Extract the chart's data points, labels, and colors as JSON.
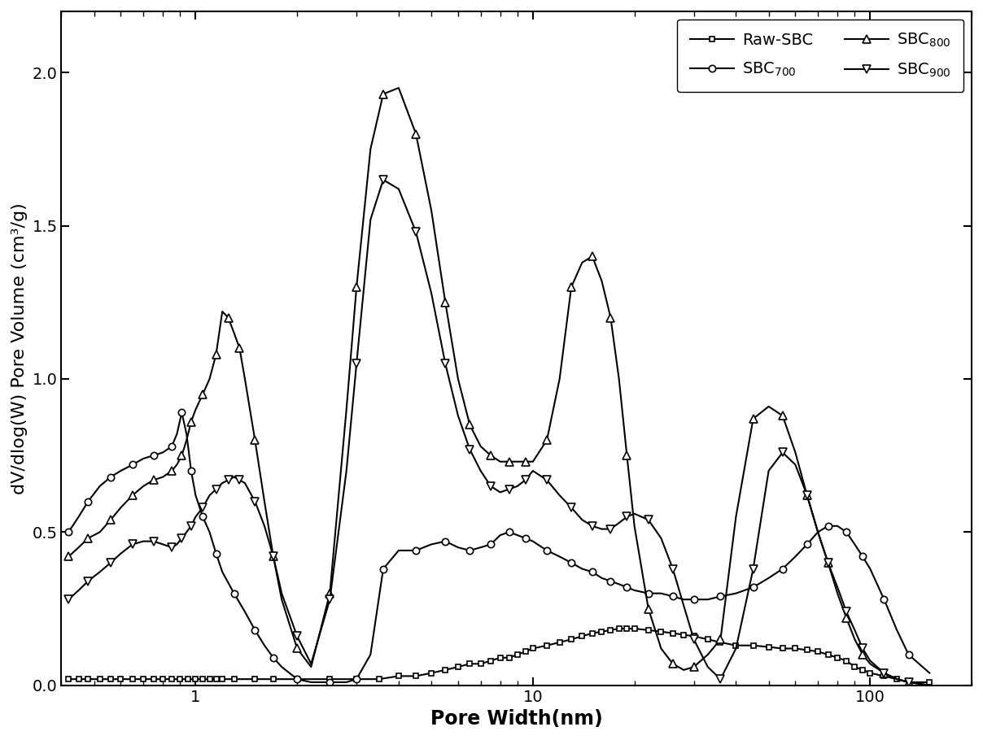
{
  "xlabel": "Pore Width(nm)",
  "ylabel": "dV/dlog(W) Pore Volume (cm³/g)",
  "xlim": [
    0.4,
    200
  ],
  "ylim": [
    0.0,
    2.2
  ],
  "yticks": [
    0.0,
    0.5,
    1.0,
    1.5,
    2.0
  ],
  "series": {
    "Raw-SBC": {
      "x": [
        0.42,
        0.45,
        0.48,
        0.52,
        0.56,
        0.6,
        0.65,
        0.7,
        0.75,
        0.8,
        0.85,
        0.9,
        0.95,
        1.0,
        1.05,
        1.1,
        1.15,
        1.2,
        1.3,
        1.5,
        1.7,
        2.0,
        2.5,
        3.0,
        3.5,
        4.0,
        4.5,
        5.0,
        5.5,
        6.0,
        6.5,
        7.0,
        7.5,
        8.0,
        8.5,
        9.0,
        9.5,
        10.0,
        11.0,
        12.0,
        13.0,
        14.0,
        15.0,
        16.0,
        17.0,
        18.0,
        19.0,
        20.0,
        22.0,
        24.0,
        26.0,
        28.0,
        30.0,
        33.0,
        36.0,
        40.0,
        45.0,
        50.0,
        55.0,
        60.0,
        65.0,
        70.0,
        75.0,
        80.0,
        85.0,
        90.0,
        95.0,
        100.0,
        110.0,
        120.0,
        130.0,
        150.0
      ],
      "y": [
        0.02,
        0.02,
        0.02,
        0.02,
        0.02,
        0.02,
        0.02,
        0.02,
        0.02,
        0.02,
        0.02,
        0.02,
        0.02,
        0.02,
        0.02,
        0.02,
        0.02,
        0.02,
        0.02,
        0.02,
        0.02,
        0.02,
        0.02,
        0.02,
        0.02,
        0.03,
        0.03,
        0.04,
        0.05,
        0.06,
        0.07,
        0.07,
        0.08,
        0.09,
        0.09,
        0.1,
        0.11,
        0.12,
        0.13,
        0.14,
        0.15,
        0.16,
        0.17,
        0.175,
        0.18,
        0.185,
        0.185,
        0.185,
        0.18,
        0.175,
        0.17,
        0.165,
        0.16,
        0.15,
        0.14,
        0.13,
        0.13,
        0.125,
        0.12,
        0.12,
        0.115,
        0.11,
        0.1,
        0.09,
        0.08,
        0.06,
        0.05,
        0.04,
        0.03,
        0.02,
        0.01,
        0.01
      ],
      "marker": "s",
      "label": "Raw-SBC",
      "markersize": 5,
      "markevery": 1
    },
    "SBC700": {
      "x": [
        0.42,
        0.45,
        0.48,
        0.52,
        0.56,
        0.6,
        0.65,
        0.7,
        0.75,
        0.8,
        0.85,
        0.88,
        0.91,
        0.94,
        0.97,
        1.0,
        1.05,
        1.1,
        1.15,
        1.2,
        1.3,
        1.4,
        1.5,
        1.6,
        1.7,
        1.8,
        2.0,
        2.2,
        2.5,
        2.8,
        3.0,
        3.3,
        3.6,
        4.0,
        4.5,
        5.0,
        5.5,
        6.0,
        6.5,
        7.0,
        7.5,
        8.0,
        8.5,
        9.0,
        9.5,
        10.0,
        11.0,
        12.0,
        13.0,
        14.0,
        15.0,
        16.0,
        17.0,
        18.0,
        19.0,
        20.0,
        22.0,
        24.0,
        26.0,
        28.0,
        30.0,
        33.0,
        36.0,
        40.0,
        45.0,
        50.0,
        55.0,
        60.0,
        65.0,
        70.0,
        75.0,
        80.0,
        85.0,
        90.0,
        95.0,
        100.0,
        110.0,
        120.0,
        130.0,
        150.0
      ],
      "y": [
        0.5,
        0.55,
        0.6,
        0.65,
        0.68,
        0.7,
        0.72,
        0.74,
        0.75,
        0.76,
        0.78,
        0.82,
        0.89,
        0.82,
        0.7,
        0.62,
        0.55,
        0.5,
        0.43,
        0.37,
        0.3,
        0.24,
        0.18,
        0.13,
        0.09,
        0.06,
        0.02,
        0.01,
        0.01,
        0.01,
        0.02,
        0.1,
        0.38,
        0.44,
        0.44,
        0.46,
        0.47,
        0.45,
        0.44,
        0.45,
        0.46,
        0.49,
        0.5,
        0.49,
        0.48,
        0.47,
        0.44,
        0.42,
        0.4,
        0.38,
        0.37,
        0.35,
        0.34,
        0.33,
        0.32,
        0.31,
        0.3,
        0.3,
        0.29,
        0.28,
        0.28,
        0.28,
        0.29,
        0.3,
        0.32,
        0.35,
        0.38,
        0.42,
        0.46,
        0.5,
        0.52,
        0.52,
        0.5,
        0.46,
        0.42,
        0.38,
        0.28,
        0.18,
        0.1,
        0.04
      ],
      "marker": "o",
      "label": "SBC$_{700}$",
      "markersize": 6,
      "markevery": 2
    },
    "SBC800": {
      "x": [
        0.42,
        0.45,
        0.48,
        0.52,
        0.56,
        0.6,
        0.65,
        0.7,
        0.75,
        0.8,
        0.85,
        0.88,
        0.91,
        0.94,
        0.97,
        1.0,
        1.05,
        1.1,
        1.15,
        1.2,
        1.25,
        1.3,
        1.35,
        1.4,
        1.5,
        1.6,
        1.7,
        1.8,
        2.0,
        2.2,
        2.5,
        2.8,
        3.0,
        3.3,
        3.6,
        4.0,
        4.5,
        5.0,
        5.5,
        6.0,
        6.5,
        7.0,
        7.5,
        8.0,
        8.5,
        9.0,
        9.5,
        10.0,
        11.0,
        12.0,
        13.0,
        14.0,
        15.0,
        16.0,
        17.0,
        18.0,
        19.0,
        20.0,
        22.0,
        24.0,
        26.0,
        28.0,
        30.0,
        33.0,
        36.0,
        40.0,
        45.0,
        50.0,
        55.0,
        60.0,
        65.0,
        70.0,
        75.0,
        80.0,
        85.0,
        90.0,
        95.0,
        100.0,
        110.0,
        120.0,
        130.0,
        150.0
      ],
      "y": [
        0.42,
        0.45,
        0.48,
        0.5,
        0.54,
        0.58,
        0.62,
        0.65,
        0.67,
        0.68,
        0.7,
        0.72,
        0.75,
        0.8,
        0.86,
        0.9,
        0.95,
        1.0,
        1.08,
        1.22,
        1.2,
        1.15,
        1.1,
        1.0,
        0.8,
        0.6,
        0.42,
        0.28,
        0.12,
        0.06,
        0.3,
        0.9,
        1.3,
        1.75,
        1.93,
        1.95,
        1.8,
        1.55,
        1.25,
        1.0,
        0.85,
        0.78,
        0.75,
        0.73,
        0.73,
        0.73,
        0.73,
        0.73,
        0.8,
        1.0,
        1.3,
        1.38,
        1.4,
        1.32,
        1.2,
        1.0,
        0.75,
        0.52,
        0.25,
        0.12,
        0.07,
        0.05,
        0.06,
        0.1,
        0.15,
        0.55,
        0.87,
        0.91,
        0.88,
        0.76,
        0.62,
        0.5,
        0.4,
        0.3,
        0.22,
        0.15,
        0.1,
        0.07,
        0.04,
        0.02,
        0.01,
        0.0
      ],
      "marker": "^",
      "label": "SBC$_{800}$",
      "markersize": 7,
      "markevery": 2
    },
    "SBC900": {
      "x": [
        0.42,
        0.45,
        0.48,
        0.52,
        0.56,
        0.6,
        0.65,
        0.7,
        0.75,
        0.8,
        0.85,
        0.88,
        0.91,
        0.94,
        0.97,
        1.0,
        1.05,
        1.1,
        1.15,
        1.2,
        1.25,
        1.3,
        1.35,
        1.4,
        1.5,
        1.6,
        1.7,
        1.8,
        2.0,
        2.2,
        2.5,
        2.8,
        3.0,
        3.3,
        3.6,
        4.0,
        4.5,
        5.0,
        5.5,
        6.0,
        6.5,
        7.0,
        7.5,
        8.0,
        8.5,
        9.0,
        9.5,
        10.0,
        11.0,
        12.0,
        13.0,
        14.0,
        15.0,
        16.0,
        17.0,
        18.0,
        19.0,
        20.0,
        22.0,
        24.0,
        26.0,
        28.0,
        30.0,
        33.0,
        36.0,
        40.0,
        45.0,
        50.0,
        55.0,
        60.0,
        65.0,
        70.0,
        75.0,
        80.0,
        85.0,
        90.0,
        95.0,
        100.0,
        110.0,
        120.0,
        130.0,
        150.0
      ],
      "y": [
        0.28,
        0.31,
        0.34,
        0.37,
        0.4,
        0.43,
        0.46,
        0.47,
        0.47,
        0.46,
        0.45,
        0.46,
        0.48,
        0.5,
        0.52,
        0.55,
        0.58,
        0.62,
        0.64,
        0.66,
        0.67,
        0.68,
        0.67,
        0.66,
        0.6,
        0.52,
        0.42,
        0.3,
        0.16,
        0.07,
        0.28,
        0.7,
        1.05,
        1.52,
        1.65,
        1.62,
        1.48,
        1.28,
        1.05,
        0.88,
        0.77,
        0.7,
        0.65,
        0.63,
        0.64,
        0.65,
        0.67,
        0.7,
        0.67,
        0.62,
        0.58,
        0.54,
        0.52,
        0.51,
        0.51,
        0.53,
        0.55,
        0.56,
        0.54,
        0.48,
        0.38,
        0.26,
        0.15,
        0.06,
        0.02,
        0.12,
        0.38,
        0.7,
        0.76,
        0.72,
        0.62,
        0.5,
        0.4,
        0.32,
        0.24,
        0.18,
        0.12,
        0.08,
        0.04,
        0.02,
        0.01,
        0.0
      ],
      "marker": "v",
      "label": "SBC$_{900}$",
      "markersize": 7,
      "markevery": 2
    }
  },
  "legend_fontsize": 14,
  "axis_label_fontsize": 17,
  "tick_fontsize": 14
}
